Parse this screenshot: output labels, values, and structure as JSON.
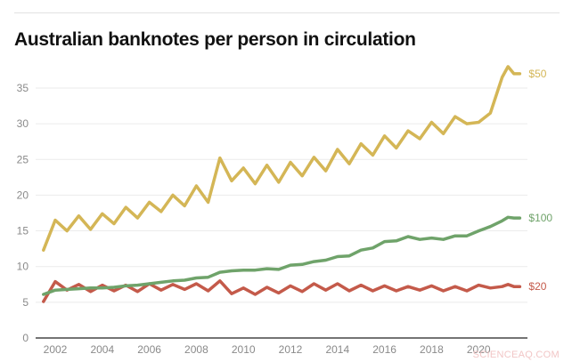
{
  "title": "Australian banknotes per person in circulation",
  "watermark": "SCIENCEAQ.COM",
  "chart_data": {
    "type": "line",
    "title": "Australian banknotes per person in circulation",
    "xlabel": "",
    "ylabel": "",
    "ylim": [
      0,
      38
    ],
    "xlim": [
      2001.5,
      2021.75
    ],
    "y_ticks": [
      0,
      5,
      10,
      15,
      20,
      25,
      30,
      35
    ],
    "x_ticks": [
      2002,
      2004,
      2006,
      2008,
      2010,
      2012,
      2014,
      2016,
      2018,
      2020
    ],
    "grid": true,
    "legend_position": "inline-right",
    "x": [
      2001.5,
      2002.0,
      2002.5,
      2003.0,
      2003.5,
      2004.0,
      2004.5,
      2005.0,
      2005.5,
      2006.0,
      2006.5,
      2007.0,
      2007.5,
      2008.0,
      2008.5,
      2009.0,
      2009.5,
      2010.0,
      2010.5,
      2011.0,
      2011.5,
      2012.0,
      2012.5,
      2013.0,
      2013.5,
      2014.0,
      2014.5,
      2015.0,
      2015.5,
      2016.0,
      2016.5,
      2017.0,
      2017.5,
      2018.0,
      2018.5,
      2019.0,
      2019.5,
      2020.0,
      2020.5,
      2021.0,
      2021.25,
      2021.5,
      2021.75
    ],
    "series": [
      {
        "name": "$50",
        "color": "#d4b656",
        "values": [
          12.3,
          16.5,
          15.0,
          17.1,
          15.2,
          17.4,
          16.0,
          18.3,
          16.8,
          19.0,
          17.7,
          20.0,
          18.5,
          21.3,
          19.0,
          25.2,
          22.0,
          23.8,
          21.6,
          24.2,
          21.8,
          24.6,
          22.7,
          25.3,
          23.4,
          26.4,
          24.4,
          27.2,
          25.6,
          28.3,
          26.6,
          29.0,
          27.9,
          30.2,
          28.6,
          31.0,
          30.0,
          30.2,
          31.5,
          36.5,
          38.0,
          37.0,
          37.0
        ]
      },
      {
        "name": "$100",
        "color": "#6fa36a",
        "values": [
          6.1,
          6.7,
          6.8,
          6.9,
          7.0,
          7.0,
          7.1,
          7.3,
          7.4,
          7.6,
          7.8,
          8.0,
          8.1,
          8.4,
          8.5,
          9.2,
          9.4,
          9.5,
          9.5,
          9.7,
          9.6,
          10.2,
          10.3,
          10.7,
          10.9,
          11.4,
          11.5,
          12.3,
          12.6,
          13.5,
          13.6,
          14.2,
          13.8,
          14.0,
          13.8,
          14.3,
          14.3,
          15.0,
          15.6,
          16.4,
          16.9,
          16.8,
          16.8
        ]
      },
      {
        "name": "$20",
        "color": "#c45a4a",
        "values": [
          5.1,
          7.9,
          6.7,
          7.5,
          6.5,
          7.4,
          6.6,
          7.4,
          6.5,
          7.6,
          6.7,
          7.5,
          6.8,
          7.6,
          6.6,
          8.0,
          6.2,
          7.0,
          6.1,
          7.1,
          6.3,
          7.3,
          6.5,
          7.6,
          6.7,
          7.6,
          6.6,
          7.4,
          6.6,
          7.3,
          6.6,
          7.2,
          6.7,
          7.3,
          6.6,
          7.2,
          6.6,
          7.4,
          7.0,
          7.2,
          7.5,
          7.2,
          7.2
        ]
      }
    ]
  },
  "labels": {
    "s50": "$50",
    "s100": "$100",
    "s20": "$20"
  }
}
